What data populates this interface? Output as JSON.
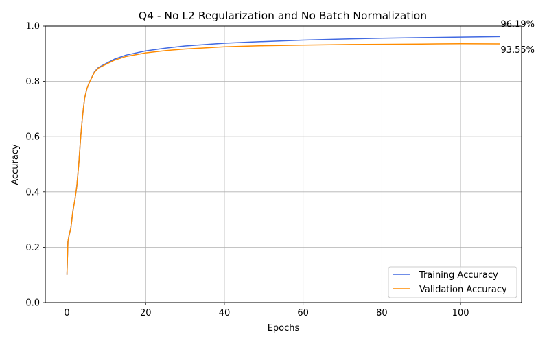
{
  "chart_data": {
    "type": "line",
    "title": "Q4 - No L2 Regularization and No Batch Normalization",
    "xlabel": "Epochs",
    "ylabel": "Accuracy",
    "xlim": [
      -5.5,
      115.5
    ],
    "ylim": [
      0.0,
      1.0
    ],
    "xticks": [
      0,
      20,
      40,
      60,
      80,
      100
    ],
    "yticks": [
      0.0,
      0.2,
      0.4,
      0.6,
      0.8,
      1.0
    ],
    "xtick_labels": [
      "0",
      "20",
      "40",
      "60",
      "80",
      "100"
    ],
    "ytick_labels": [
      "0.0",
      "0.2",
      "0.4",
      "0.6",
      "0.8",
      "1.0"
    ],
    "grid": true,
    "legend_position": "lower-right",
    "series": [
      {
        "name": "Training Accuracy",
        "color": "#4169e1",
        "x": [
          0,
          0.25,
          0.5,
          1,
          1.5,
          2,
          2.5,
          3,
          3.5,
          4,
          4.5,
          5,
          5.5,
          6,
          7,
          8,
          10,
          12,
          15,
          20,
          25,
          30,
          40,
          50,
          60,
          70,
          80,
          90,
          100,
          110
        ],
        "y": [
          0.1,
          0.22,
          0.24,
          0.27,
          0.33,
          0.37,
          0.42,
          0.5,
          0.6,
          0.68,
          0.74,
          0.77,
          0.79,
          0.805,
          0.835,
          0.85,
          0.865,
          0.88,
          0.895,
          0.91,
          0.92,
          0.928,
          0.938,
          0.944,
          0.949,
          0.953,
          0.956,
          0.958,
          0.96,
          0.9619
        ],
        "end_label": "96.19%"
      },
      {
        "name": "Validation Accuracy",
        "color": "#ff8c00",
        "x": [
          0,
          0.25,
          0.5,
          1,
          1.5,
          2,
          2.5,
          3,
          3.5,
          4,
          4.5,
          5,
          5.5,
          6,
          7,
          8,
          10,
          12,
          15,
          20,
          25,
          30,
          40,
          50,
          60,
          70,
          80,
          90,
          100,
          110
        ],
        "y": [
          0.1,
          0.22,
          0.24,
          0.27,
          0.33,
          0.37,
          0.42,
          0.5,
          0.6,
          0.68,
          0.74,
          0.77,
          0.79,
          0.805,
          0.833,
          0.848,
          0.862,
          0.876,
          0.89,
          0.903,
          0.911,
          0.917,
          0.925,
          0.929,
          0.931,
          0.933,
          0.934,
          0.935,
          0.936,
          0.9355
        ],
        "end_label": "93.55%"
      }
    ]
  }
}
